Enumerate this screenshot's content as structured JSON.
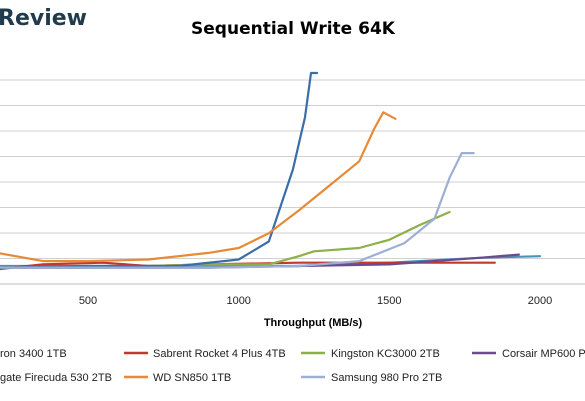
{
  "brand": "Review",
  "chart_data": {
    "type": "line",
    "title": "Sequential Write 64K",
    "xlabel": "Throughput (MB/s)",
    "ylabel": "",
    "xlim": [
      200,
      2150
    ],
    "xticks": [
      500,
      1000,
      1500,
      2000
    ],
    "grid": true,
    "legend_position": "bottom",
    "series": [
      {
        "name": "ron 3400 1TB",
        "color": "#4a90b8",
        "x": [
          200,
          500,
          900,
          1200,
          1500,
          1800,
          2000
        ],
        "y": [
          11,
          11,
          11,
          11,
          13,
          16,
          17
        ]
      },
      {
        "name": "Sabrent Rocket 4 Plus 4TB",
        "color": "#c0392b",
        "x": [
          200,
          350,
          550,
          700,
          900,
          1200,
          1600,
          1850
        ],
        "y": [
          9,
          12,
          13,
          11,
          12,
          13,
          13,
          13
        ]
      },
      {
        "name": "Kingston KC3000 2TB",
        "color": "#8db04a",
        "x": [
          200,
          500,
          900,
          1100,
          1200,
          1250,
          1400,
          1500,
          1600,
          1700
        ],
        "y": [
          10,
          10,
          12,
          12,
          17,
          20,
          22,
          27,
          36,
          44
        ]
      },
      {
        "name": "Corsair MP600 P",
        "color": "#6b4b8f",
        "x": [
          200,
          500,
          900,
          1200,
          1500,
          1800,
          1930
        ],
        "y": [
          10,
          10,
          10,
          11,
          12,
          16,
          18
        ]
      },
      {
        "name": "gate Firecuda 530 2TB",
        "color": "#3a6ea8",
        "x": [
          200,
          500,
          800,
          1000,
          1100,
          1180,
          1220,
          1240,
          1260
        ],
        "y": [
          10,
          11,
          11,
          15,
          26,
          70,
          102,
          129,
          129
        ]
      },
      {
        "name": "WD SN850 1TB",
        "color": "#e88a35",
        "x": [
          200,
          350,
          500,
          700,
          900,
          1000,
          1100,
          1200,
          1300,
          1400,
          1450,
          1480,
          1520
        ],
        "y": [
          19,
          14,
          14,
          15,
          19,
          22,
          31,
          45,
          60,
          75,
          95,
          105,
          101
        ]
      },
      {
        "name": "Samsung 980 Pro 2TB",
        "color": "#9eaed4",
        "x": [
          200,
          500,
          900,
          1200,
          1400,
          1550,
          1650,
          1700,
          1740,
          1780
        ],
        "y": [
          10,
          10,
          10,
          11,
          14,
          25,
          40,
          65,
          80,
          80
        ]
      }
    ]
  }
}
